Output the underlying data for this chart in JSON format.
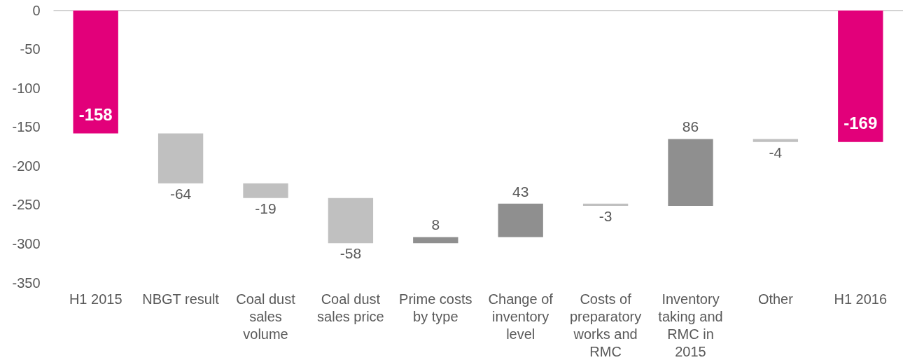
{
  "chart_data": {
    "type": "bar",
    "categories": [
      "H1 2015",
      "NBGT result",
      "Coal dust sales volume",
      "Coal dust sales price",
      "Prime costs by type",
      "Change of inventory level",
      "Costs of preparatory works and RMC",
      "Inventory taking and RMC in 2015",
      "Other",
      "H1 2016"
    ],
    "values": [
      -158,
      -64,
      -19,
      -58,
      8,
      43,
      -3,
      86,
      -4,
      -169
    ],
    "base": [
      0,
      -158,
      -222,
      -241,
      -299,
      -291,
      -248,
      -251,
      -165,
      0
    ],
    "colors": [
      "#e2007a",
      "#c0c0c0",
      "#c0c0c0",
      "#c0c0c0",
      "#8f8f8f",
      "#8f8f8f",
      "#c0c0c0",
      "#8f8f8f",
      "#c0c0c0",
      "#e2007a"
    ],
    "ylim": [
      -350,
      0
    ],
    "yticks": [
      0,
      -50,
      -100,
      -150,
      -200,
      -250,
      -300,
      -350
    ],
    "data_labels": true
  }
}
